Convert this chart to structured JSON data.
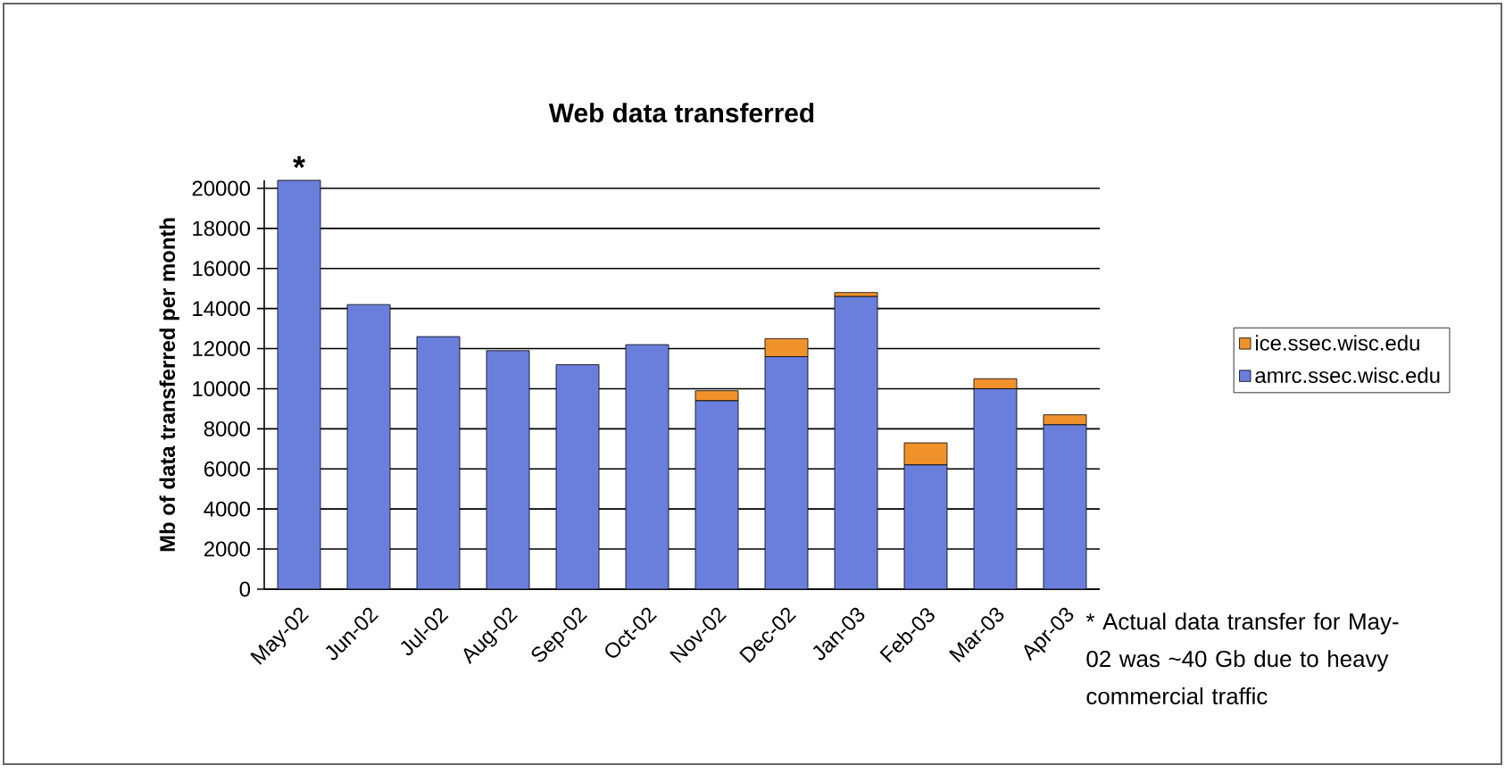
{
  "chart_data": {
    "type": "bar",
    "stacked": true,
    "title": "Web data transferred",
    "ylabel": "Mb of data transferred per month",
    "categories": [
      "May-02",
      "Jun-02",
      "Jul-02",
      "Aug-02",
      "Sep-02",
      "Oct-02",
      "Nov-02",
      "Dec-02",
      "Jan-03",
      "Feb-03",
      "Mar-03",
      "Apr-03"
    ],
    "series": [
      {
        "name": "amrc.ssec.wisc.edu",
        "color": "#6a7fdb",
        "values": [
          20400,
          14200,
          12600,
          11900,
          11200,
          12200,
          9400,
          11600,
          14600,
          6200,
          10000,
          8200
        ]
      },
      {
        "name": "ice.ssec.wisc.edu",
        "color": "#f0922c",
        "values": [
          0,
          0,
          0,
          0,
          0,
          0,
          500,
          900,
          200,
          1100,
          500,
          500
        ]
      }
    ],
    "ylim": [
      0,
      20400
    ],
    "yticks": [
      0,
      2000,
      4000,
      6000,
      8000,
      10000,
      12000,
      14000,
      16000,
      18000,
      20000
    ],
    "grid": "y",
    "legend": "right",
    "annotations": [
      {
        "text": "*",
        "x": "May-02",
        "y": 20400
      },
      "* Actual data transfer for May-02 was ~40 Gb due to heavy commercial traffic"
    ]
  }
}
